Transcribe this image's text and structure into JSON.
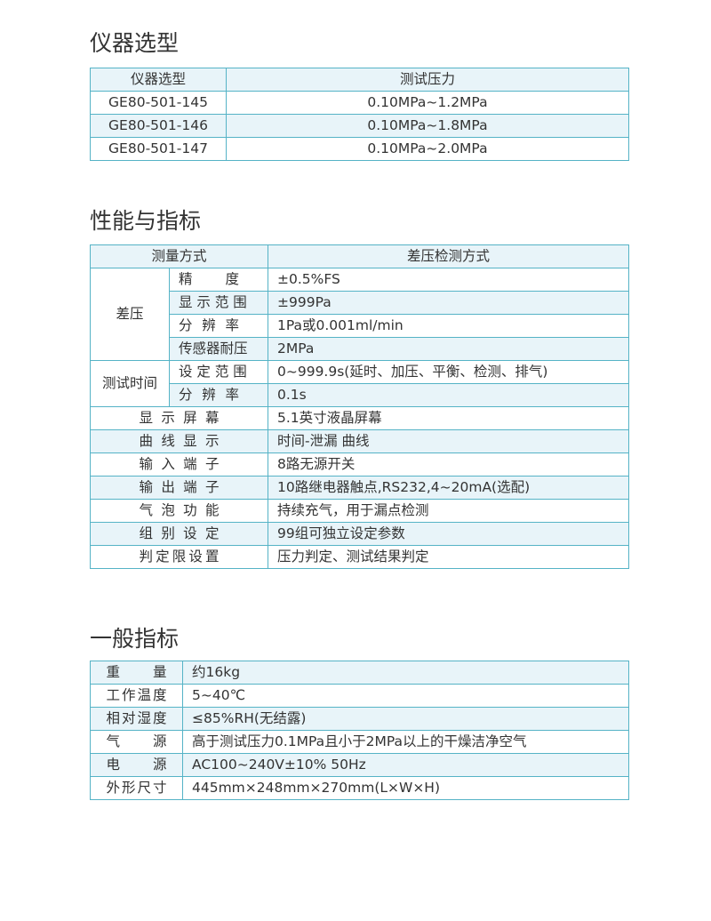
{
  "sections": {
    "models": {
      "title": "仪器选型",
      "headers": [
        "仪器选型",
        "测试压力"
      ],
      "rows": [
        [
          "GE80-501-145",
          "0.10MPa~1.2MPa"
        ],
        [
          "GE80-501-146",
          "0.10MPa~1.8MPa"
        ],
        [
          "GE80-501-147",
          "0.10MPa~2.0MPa"
        ]
      ]
    },
    "performance": {
      "title": "性能与指标",
      "headers": [
        "测量方式",
        "差压检测方式"
      ],
      "groups": [
        {
          "label": "差压",
          "rows": [
            [
              "精 度",
              "±0.5%FS"
            ],
            [
              "显 示 范 围",
              "±999Pa"
            ],
            [
              "分 辨 率",
              "1Pa或0.001ml/min"
            ],
            [
              "传感器耐压",
              "2MPa"
            ]
          ]
        },
        {
          "label": "测试时间",
          "rows": [
            [
              "设 定 范 围",
              "0~999.9s(延时、加压、平衡、检测、排气)"
            ],
            [
              "分 辨 率",
              "0.1s"
            ]
          ]
        }
      ],
      "rows": [
        [
          "显 示 屏 幕",
          "5.1英寸液晶屏幕"
        ],
        [
          "曲 线 显 示",
          "时间-泄漏 曲线"
        ],
        [
          "输 入 端 子",
          "8路无源开关"
        ],
        [
          "输 出 端 子",
          "10路继电器触点,RS232,4~20mA(选配)"
        ],
        [
          "气 泡 功 能",
          "持续充气，用于漏点检测"
        ],
        [
          "组 别 设 定",
          "99组可独立设定参数"
        ],
        [
          "判定限设置",
          "压力判定、测试结果判定"
        ]
      ]
    },
    "general": {
      "title": "一般指标",
      "rows": [
        [
          "重 量",
          "约16kg"
        ],
        [
          "工作温度",
          "5~40℃"
        ],
        [
          "相对湿度",
          "≤85%RH(无结露)"
        ],
        [
          "气 源",
          "高于测试压力0.1MPa且小于2MPa以上的干燥洁净空气"
        ],
        [
          "电 源",
          "AC100~240V±10% 50Hz"
        ],
        [
          "外形尺寸",
          "445mm×248mm×270mm(L×W×H)"
        ]
      ]
    }
  },
  "colors": {
    "border": "#55b3c6",
    "row_highlight": "#e8f4f9"
  }
}
